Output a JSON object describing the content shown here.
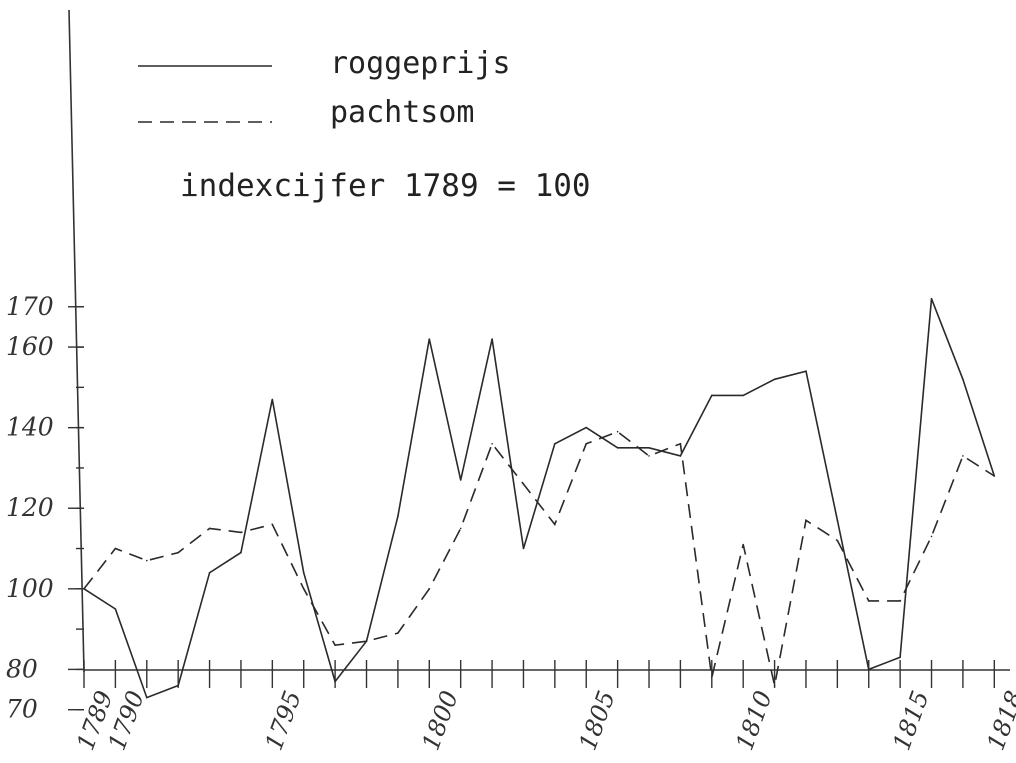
{
  "chart_data": {
    "type": "line",
    "x": [
      1789,
      1790,
      1791,
      1792,
      1793,
      1794,
      1795,
      1796,
      1797,
      1798,
      1799,
      1800,
      1801,
      1802,
      1803,
      1804,
      1805,
      1806,
      1807,
      1808,
      1809,
      1810,
      1811,
      1812,
      1813,
      1814,
      1815,
      1816,
      1817,
      1818
    ],
    "series": [
      {
        "name": "roggeprijs",
        "style": "solid",
        "values": [
          100,
          95,
          73,
          76,
          104,
          109,
          147,
          104,
          77,
          87,
          118,
          162,
          127,
          162,
          110,
          136,
          140,
          135,
          135,
          133,
          148,
          148,
          152,
          154,
          117,
          80,
          83,
          172,
          152,
          128
        ]
      },
      {
        "name": "pachtsom",
        "style": "dashed",
        "values": [
          100,
          110,
          107,
          109,
          115,
          114,
          116,
          100,
          86,
          87,
          89,
          100,
          115,
          136,
          126,
          116,
          136,
          139,
          133,
          136,
          78,
          111,
          76,
          117,
          112,
          97,
          97,
          113,
          133,
          128
        ]
      }
    ],
    "legend_placement": "top-left",
    "note": "indexcijfer 1789 = 100",
    "y_ticks": [
      {
        "value": 70,
        "label": "70"
      },
      {
        "value": 80,
        "label": "80"
      },
      {
        "value": 100,
        "label": "100"
      },
      {
        "value": 120,
        "label": "120"
      },
      {
        "value": 140,
        "label": "140"
      },
      {
        "value": 160,
        "label": "160"
      },
      {
        "value": 170,
        "label": "170"
      }
    ],
    "x_tick_labels": [
      {
        "year": 1789,
        "label": "1789"
      },
      {
        "year": 1790,
        "label": "1790"
      },
      {
        "year": 1795,
        "label": "1795"
      },
      {
        "year": 1800,
        "label": "1800"
      },
      {
        "year": 1805,
        "label": "1805"
      },
      {
        "year": 1810,
        "label": "1810"
      },
      {
        "year": 1815,
        "label": "1815"
      },
      {
        "year": 1818,
        "label": "1818"
      }
    ],
    "ylim": [
      60,
      230
    ],
    "xlim": [
      1789,
      1818.5
    ],
    "grid": false,
    "colors": {
      "line": "#2a2a2a",
      "text": "#222222",
      "background": "#ffffff"
    }
  }
}
